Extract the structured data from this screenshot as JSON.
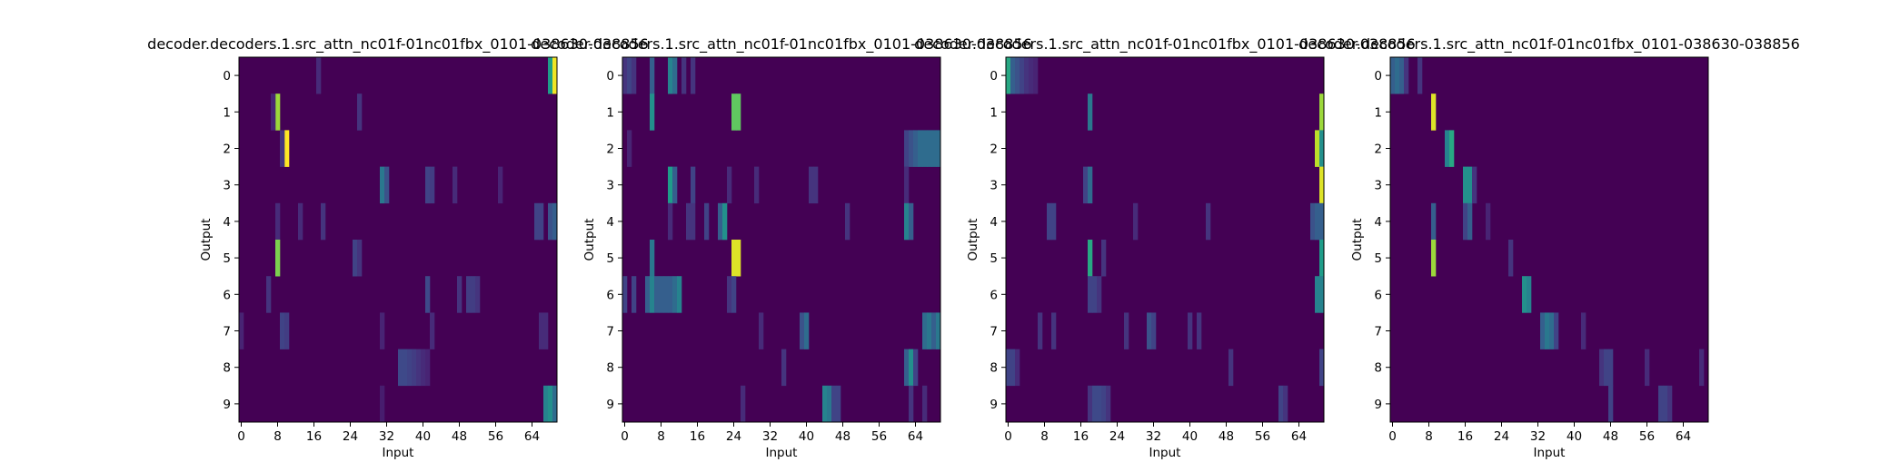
{
  "figure": {
    "colormap": "viridis",
    "background": "#ffffff"
  },
  "chart_data": [
    {
      "type": "heatmap",
      "title": "decoder.decoders.1.src_attn_nc01f-01nc01fbx_0101-038630-038856",
      "xlabel": "Input",
      "ylabel": "Output",
      "xticks": [
        "0",
        "8",
        "16",
        "24",
        "32",
        "40",
        "48",
        "56",
        "64"
      ],
      "yticks": [
        "0",
        "1",
        "2",
        "3",
        "4",
        "5",
        "6",
        "7",
        "8",
        "9"
      ],
      "n_input": 70,
      "n_output": 10,
      "grid": false,
      "base_value": 0.0,
      "cells": [
        {
          "row": 0,
          "col": 17,
          "v": 0.12
        },
        {
          "row": 0,
          "col": 68,
          "v": 0.55
        },
        {
          "row": 0,
          "col": 69,
          "v": 0.98
        },
        {
          "row": 1,
          "col": 8,
          "v": 0.85
        },
        {
          "row": 1,
          "col": 26,
          "v": 0.15
        },
        {
          "row": 1,
          "col": 7,
          "v": 0.1
        },
        {
          "row": 2,
          "col": 10,
          "v": 1.0
        },
        {
          "row": 2,
          "col": 9,
          "v": 0.15
        },
        {
          "row": 3,
          "col": 31,
          "v": 0.4
        },
        {
          "row": 3,
          "col": 32,
          "v": 0.25
        },
        {
          "row": 3,
          "col": 41,
          "v": 0.2
        },
        {
          "row": 3,
          "col": 42,
          "v": 0.18
        },
        {
          "row": 3,
          "col": 47,
          "v": 0.12
        },
        {
          "row": 3,
          "col": 57,
          "v": 0.1
        },
        {
          "row": 4,
          "col": 8,
          "v": 0.12
        },
        {
          "row": 4,
          "col": 13,
          "v": 0.12
        },
        {
          "row": 4,
          "col": 18,
          "v": 0.15
        },
        {
          "row": 4,
          "col": 65,
          "v": 0.2
        },
        {
          "row": 4,
          "col": 66,
          "v": 0.2
        },
        {
          "row": 4,
          "col": 68,
          "v": 0.25
        },
        {
          "row": 4,
          "col": 69,
          "v": 0.3
        },
        {
          "row": 5,
          "col": 8,
          "v": 0.8
        },
        {
          "row": 5,
          "col": 25,
          "v": 0.2
        },
        {
          "row": 5,
          "col": 26,
          "v": 0.15
        },
        {
          "row": 6,
          "col": 6,
          "v": 0.15
        },
        {
          "row": 6,
          "col": 41,
          "v": 0.22
        },
        {
          "row": 6,
          "col": 48,
          "v": 0.15
        },
        {
          "row": 6,
          "col": 50,
          "v": 0.18
        },
        {
          "row": 6,
          "col": 51,
          "v": 0.18
        },
        {
          "row": 6,
          "col": 52,
          "v": 0.15
        },
        {
          "row": 7,
          "col": 0,
          "v": 0.1
        },
        {
          "row": 7,
          "col": 9,
          "v": 0.2
        },
        {
          "row": 7,
          "col": 10,
          "v": 0.18
        },
        {
          "row": 7,
          "col": 31,
          "v": 0.1
        },
        {
          "row": 7,
          "col": 42,
          "v": 0.12
        },
        {
          "row": 7,
          "col": 66,
          "v": 0.12
        },
        {
          "row": 7,
          "col": 67,
          "v": 0.12
        },
        {
          "row": 8,
          "col": 35,
          "v": 0.22
        },
        {
          "row": 8,
          "col": 36,
          "v": 0.22
        },
        {
          "row": 8,
          "col": 37,
          "v": 0.2
        },
        {
          "row": 8,
          "col": 38,
          "v": 0.18
        },
        {
          "row": 8,
          "col": 39,
          "v": 0.15
        },
        {
          "row": 8,
          "col": 40,
          "v": 0.12
        },
        {
          "row": 8,
          "col": 41,
          "v": 0.1
        },
        {
          "row": 9,
          "col": 67,
          "v": 0.45
        },
        {
          "row": 9,
          "col": 68,
          "v": 0.5
        },
        {
          "row": 9,
          "col": 69,
          "v": 0.35
        },
        {
          "row": 9,
          "col": 31,
          "v": 0.08
        }
      ]
    },
    {
      "type": "heatmap",
      "title": "decoder.decoders.1.src_attn_nc01f-01nc01fbx_0101-038630-038856",
      "xlabel": "Input",
      "ylabel": "Output",
      "xticks": [
        "0",
        "8",
        "16",
        "24",
        "32",
        "40",
        "48",
        "56",
        "64"
      ],
      "yticks": [
        "0",
        "1",
        "2",
        "3",
        "4",
        "5",
        "6",
        "7",
        "8",
        "9"
      ],
      "n_input": 70,
      "n_output": 10,
      "grid": false,
      "base_value": 0.0,
      "cells": [
        {
          "row": 0,
          "col": 0,
          "v": 0.15
        },
        {
          "row": 0,
          "col": 1,
          "v": 0.2
        },
        {
          "row": 0,
          "col": 2,
          "v": 0.15
        },
        {
          "row": 0,
          "col": 6,
          "v": 0.3
        },
        {
          "row": 0,
          "col": 10,
          "v": 0.45
        },
        {
          "row": 0,
          "col": 11,
          "v": 0.35
        },
        {
          "row": 0,
          "col": 13,
          "v": 0.15
        },
        {
          "row": 0,
          "col": 15,
          "v": 0.15
        },
        {
          "row": 1,
          "col": 6,
          "v": 0.5
        },
        {
          "row": 1,
          "col": 24,
          "v": 0.75
        },
        {
          "row": 1,
          "col": 25,
          "v": 0.75
        },
        {
          "row": 2,
          "col": 1,
          "v": 0.1
        },
        {
          "row": 2,
          "col": 62,
          "v": 0.2
        },
        {
          "row": 2,
          "col": 63,
          "v": 0.25
        },
        {
          "row": 2,
          "col": 64,
          "v": 0.3
        },
        {
          "row": 2,
          "col": 65,
          "v": 0.35
        },
        {
          "row": 2,
          "col": 66,
          "v": 0.35
        },
        {
          "row": 2,
          "col": 67,
          "v": 0.35
        },
        {
          "row": 2,
          "col": 68,
          "v": 0.35
        },
        {
          "row": 2,
          "col": 69,
          "v": 0.35
        },
        {
          "row": 3,
          "col": 10,
          "v": 0.55
        },
        {
          "row": 3,
          "col": 11,
          "v": 0.3
        },
        {
          "row": 3,
          "col": 15,
          "v": 0.2
        },
        {
          "row": 3,
          "col": 23,
          "v": 0.12
        },
        {
          "row": 3,
          "col": 29,
          "v": 0.12
        },
        {
          "row": 3,
          "col": 41,
          "v": 0.15
        },
        {
          "row": 3,
          "col": 42,
          "v": 0.15
        },
        {
          "row": 3,
          "col": 62,
          "v": 0.12
        },
        {
          "row": 4,
          "col": 10,
          "v": 0.12
        },
        {
          "row": 4,
          "col": 14,
          "v": 0.15
        },
        {
          "row": 4,
          "col": 15,
          "v": 0.15
        },
        {
          "row": 4,
          "col": 18,
          "v": 0.2
        },
        {
          "row": 4,
          "col": 21,
          "v": 0.3
        },
        {
          "row": 4,
          "col": 22,
          "v": 0.5
        },
        {
          "row": 4,
          "col": 49,
          "v": 0.15
        },
        {
          "row": 4,
          "col": 62,
          "v": 0.45
        },
        {
          "row": 4,
          "col": 63,
          "v": 0.3
        },
        {
          "row": 5,
          "col": 6,
          "v": 0.4
        },
        {
          "row": 5,
          "col": 24,
          "v": 0.95
        },
        {
          "row": 5,
          "col": 25,
          "v": 0.95
        },
        {
          "row": 6,
          "col": 0,
          "v": 0.2
        },
        {
          "row": 6,
          "col": 2,
          "v": 0.2
        },
        {
          "row": 6,
          "col": 5,
          "v": 0.3
        },
        {
          "row": 6,
          "col": 6,
          "v": 0.45
        },
        {
          "row": 6,
          "col": 7,
          "v": 0.3
        },
        {
          "row": 6,
          "col": 8,
          "v": 0.3
        },
        {
          "row": 6,
          "col": 9,
          "v": 0.3
        },
        {
          "row": 6,
          "col": 10,
          "v": 0.3
        },
        {
          "row": 6,
          "col": 11,
          "v": 0.35
        },
        {
          "row": 6,
          "col": 12,
          "v": 0.45
        },
        {
          "row": 6,
          "col": 23,
          "v": 0.15
        },
        {
          "row": 6,
          "col": 24,
          "v": 0.2
        },
        {
          "row": 7,
          "col": 30,
          "v": 0.12
        },
        {
          "row": 7,
          "col": 39,
          "v": 0.25
        },
        {
          "row": 7,
          "col": 40,
          "v": 0.35
        },
        {
          "row": 7,
          "col": 66,
          "v": 0.35
        },
        {
          "row": 7,
          "col": 67,
          "v": 0.4
        },
        {
          "row": 7,
          "col": 68,
          "v": 0.3
        },
        {
          "row": 7,
          "col": 69,
          "v": 0.4
        },
        {
          "row": 8,
          "col": 35,
          "v": 0.15
        },
        {
          "row": 8,
          "col": 62,
          "v": 0.3
        },
        {
          "row": 8,
          "col": 63,
          "v": 0.5
        },
        {
          "row": 8,
          "col": 64,
          "v": 0.2
        },
        {
          "row": 9,
          "col": 26,
          "v": 0.12
        },
        {
          "row": 9,
          "col": 44,
          "v": 0.45
        },
        {
          "row": 9,
          "col": 45,
          "v": 0.4
        },
        {
          "row": 9,
          "col": 46,
          "v": 0.2
        },
        {
          "row": 9,
          "col": 47,
          "v": 0.2
        },
        {
          "row": 9,
          "col": 63,
          "v": 0.15
        },
        {
          "row": 9,
          "col": 66,
          "v": 0.12
        }
      ]
    },
    {
      "type": "heatmap",
      "title": "decoder.decoders.1.src_attn_nc01f-01nc01fbx_0101-038630-038856",
      "xlabel": "Input",
      "ylabel": "Output",
      "xticks": [
        "0",
        "8",
        "16",
        "24",
        "32",
        "40",
        "48",
        "56",
        "64"
      ],
      "yticks": [
        "0",
        "1",
        "2",
        "3",
        "4",
        "5",
        "6",
        "7",
        "8",
        "9"
      ],
      "n_input": 70,
      "n_output": 10,
      "grid": false,
      "base_value": 0.0,
      "cells": [
        {
          "row": 0,
          "col": 0,
          "v": 0.6
        },
        {
          "row": 0,
          "col": 1,
          "v": 0.3
        },
        {
          "row": 0,
          "col": 2,
          "v": 0.25
        },
        {
          "row": 0,
          "col": 3,
          "v": 0.2
        },
        {
          "row": 0,
          "col": 4,
          "v": 0.15
        },
        {
          "row": 0,
          "col": 5,
          "v": 0.12
        },
        {
          "row": 0,
          "col": 6,
          "v": 0.1
        },
        {
          "row": 1,
          "col": 18,
          "v": 0.4
        },
        {
          "row": 1,
          "col": 69,
          "v": 0.85
        },
        {
          "row": 2,
          "col": 68,
          "v": 0.9
        },
        {
          "row": 2,
          "col": 69,
          "v": 0.5
        },
        {
          "row": 3,
          "col": 17,
          "v": 0.2
        },
        {
          "row": 3,
          "col": 18,
          "v": 0.35
        },
        {
          "row": 3,
          "col": 69,
          "v": 0.95
        },
        {
          "row": 4,
          "col": 9,
          "v": 0.2
        },
        {
          "row": 4,
          "col": 10,
          "v": 0.2
        },
        {
          "row": 4,
          "col": 28,
          "v": 0.12
        },
        {
          "row": 4,
          "col": 44,
          "v": 0.15
        },
        {
          "row": 4,
          "col": 67,
          "v": 0.25
        },
        {
          "row": 4,
          "col": 68,
          "v": 0.3
        },
        {
          "row": 4,
          "col": 69,
          "v": 0.3
        },
        {
          "row": 5,
          "col": 18,
          "v": 0.6
        },
        {
          "row": 5,
          "col": 21,
          "v": 0.15
        },
        {
          "row": 5,
          "col": 69,
          "v": 0.55
        },
        {
          "row": 6,
          "col": 18,
          "v": 0.2
        },
        {
          "row": 6,
          "col": 19,
          "v": 0.2
        },
        {
          "row": 6,
          "col": 20,
          "v": 0.15
        },
        {
          "row": 6,
          "col": 68,
          "v": 0.45
        },
        {
          "row": 6,
          "col": 69,
          "v": 0.45
        },
        {
          "row": 7,
          "col": 7,
          "v": 0.15
        },
        {
          "row": 7,
          "col": 10,
          "v": 0.15
        },
        {
          "row": 7,
          "col": 26,
          "v": 0.15
        },
        {
          "row": 7,
          "col": 31,
          "v": 0.25
        },
        {
          "row": 7,
          "col": 32,
          "v": 0.2
        },
        {
          "row": 7,
          "col": 40,
          "v": 0.15
        },
        {
          "row": 7,
          "col": 42,
          "v": 0.15
        },
        {
          "row": 8,
          "col": 0,
          "v": 0.2
        },
        {
          "row": 8,
          "col": 1,
          "v": 0.2
        },
        {
          "row": 8,
          "col": 2,
          "v": 0.12
        },
        {
          "row": 8,
          "col": 49,
          "v": 0.15
        },
        {
          "row": 8,
          "col": 69,
          "v": 0.2
        },
        {
          "row": 9,
          "col": 18,
          "v": 0.15
        },
        {
          "row": 9,
          "col": 19,
          "v": 0.22
        },
        {
          "row": 9,
          "col": 20,
          "v": 0.22
        },
        {
          "row": 9,
          "col": 21,
          "v": 0.2
        },
        {
          "row": 9,
          "col": 22,
          "v": 0.15
        },
        {
          "row": 9,
          "col": 60,
          "v": 0.2
        },
        {
          "row": 9,
          "col": 61,
          "v": 0.15
        }
      ]
    },
    {
      "type": "heatmap",
      "title": "decoder.decoders.1.src_attn_nc01f-01nc01fbx_0101-038630-038856",
      "xlabel": "Input",
      "ylabel": "Output",
      "xticks": [
        "0",
        "8",
        "16",
        "24",
        "32",
        "40",
        "48",
        "56",
        "64"
      ],
      "yticks": [
        "0",
        "1",
        "2",
        "3",
        "4",
        "5",
        "6",
        "7",
        "8",
        "9"
      ],
      "n_input": 70,
      "n_output": 10,
      "grid": false,
      "base_value": 0.0,
      "cells": [
        {
          "row": 0,
          "col": 0,
          "v": 0.3
        },
        {
          "row": 0,
          "col": 1,
          "v": 0.35
        },
        {
          "row": 0,
          "col": 2,
          "v": 0.3
        },
        {
          "row": 0,
          "col": 3,
          "v": 0.15
        },
        {
          "row": 0,
          "col": 6,
          "v": 0.15
        },
        {
          "row": 1,
          "col": 9,
          "v": 0.95
        },
        {
          "row": 2,
          "col": 12,
          "v": 0.45
        },
        {
          "row": 2,
          "col": 13,
          "v": 0.6
        },
        {
          "row": 3,
          "col": 16,
          "v": 0.5
        },
        {
          "row": 3,
          "col": 17,
          "v": 0.5
        },
        {
          "row": 3,
          "col": 18,
          "v": 0.15
        },
        {
          "row": 4,
          "col": 9,
          "v": 0.3
        },
        {
          "row": 4,
          "col": 16,
          "v": 0.2
        },
        {
          "row": 4,
          "col": 17,
          "v": 0.3
        },
        {
          "row": 4,
          "col": 21,
          "v": 0.1
        },
        {
          "row": 5,
          "col": 9,
          "v": 0.85
        },
        {
          "row": 5,
          "col": 26,
          "v": 0.15
        },
        {
          "row": 6,
          "col": 29,
          "v": 0.5
        },
        {
          "row": 6,
          "col": 30,
          "v": 0.45
        },
        {
          "row": 7,
          "col": 33,
          "v": 0.3
        },
        {
          "row": 7,
          "col": 34,
          "v": 0.4
        },
        {
          "row": 7,
          "col": 35,
          "v": 0.35
        },
        {
          "row": 7,
          "col": 36,
          "v": 0.2
        },
        {
          "row": 7,
          "col": 42,
          "v": 0.12
        },
        {
          "row": 8,
          "col": 46,
          "v": 0.15
        },
        {
          "row": 8,
          "col": 47,
          "v": 0.2
        },
        {
          "row": 8,
          "col": 48,
          "v": 0.2
        },
        {
          "row": 8,
          "col": 56,
          "v": 0.12
        },
        {
          "row": 8,
          "col": 68,
          "v": 0.12
        },
        {
          "row": 9,
          "col": 48,
          "v": 0.2
        },
        {
          "row": 9,
          "col": 59,
          "v": 0.2
        },
        {
          "row": 9,
          "col": 60,
          "v": 0.2
        },
        {
          "row": 9,
          "col": 61,
          "v": 0.15
        }
      ]
    }
  ]
}
